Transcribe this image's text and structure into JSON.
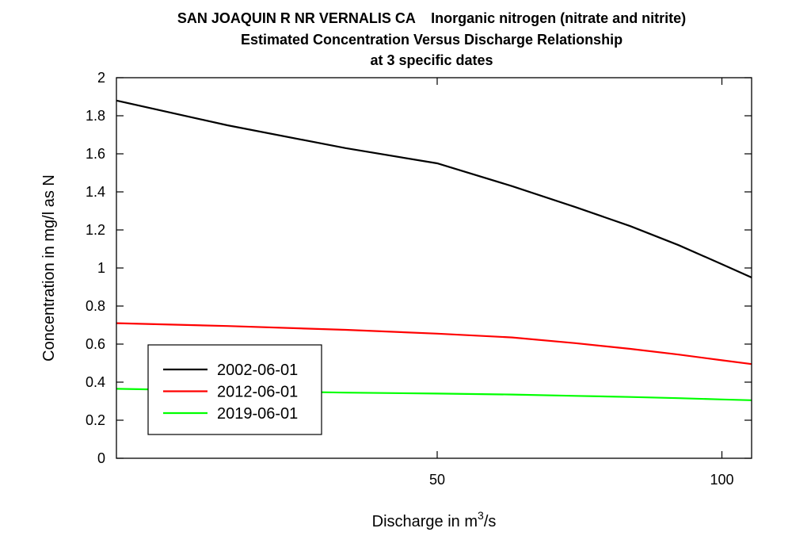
{
  "chart_data": {
    "type": "line",
    "title_lines": [
      "SAN JOAQUIN R NR VERNALIS CA    Inorganic nitrogen (nitrate and nitrite)",
      "Estimated Concentration Versus Discharge Relationship",
      "at 3 specific dates"
    ],
    "xlabel_prefix": "Discharge in m",
    "xlabel_sup": "3",
    "xlabel_suffix": "/s",
    "ylabel": "Concentration in mg/l as N",
    "x_scale": "log",
    "xlim": [
      22.9,
      107.5
    ],
    "ylim": [
      0,
      2
    ],
    "x_ticks": [
      50,
      100
    ],
    "x_tick_labels": [
      "50",
      "100"
    ],
    "y_ticks": [
      0,
      0.2,
      0.4,
      0.6,
      0.8,
      1,
      1.2,
      1.4,
      1.6,
      1.8,
      2
    ],
    "y_tick_labels": [
      "0",
      "0.2",
      "0.4",
      "0.6",
      "0.8",
      "1",
      "1.2",
      "1.4",
      "1.6",
      "1.8",
      "2"
    ],
    "grid": false,
    "legend_position": "bottom-left",
    "series": [
      {
        "name": "2002-06-01",
        "color": "#000000",
        "x": [
          22.9,
          30,
          40,
          50,
          60,
          70,
          80,
          90,
          100,
          107.5
        ],
        "y": [
          1.88,
          1.75,
          1.63,
          1.55,
          1.43,
          1.32,
          1.22,
          1.12,
          1.02,
          0.95
        ]
      },
      {
        "name": "2012-06-01",
        "color": "#ff0000",
        "x": [
          22.9,
          30,
          40,
          50,
          60,
          70,
          80,
          90,
          100,
          107.5
        ],
        "y": [
          0.71,
          0.695,
          0.675,
          0.655,
          0.635,
          0.605,
          0.575,
          0.545,
          0.515,
          0.495
        ]
      },
      {
        "name": "2019-06-01",
        "color": "#00ff00",
        "x": [
          22.9,
          30,
          40,
          50,
          60,
          70,
          80,
          90,
          100,
          107.5
        ],
        "y": [
          0.365,
          0.355,
          0.345,
          0.34,
          0.335,
          0.328,
          0.322,
          0.316,
          0.309,
          0.305
        ]
      }
    ]
  }
}
